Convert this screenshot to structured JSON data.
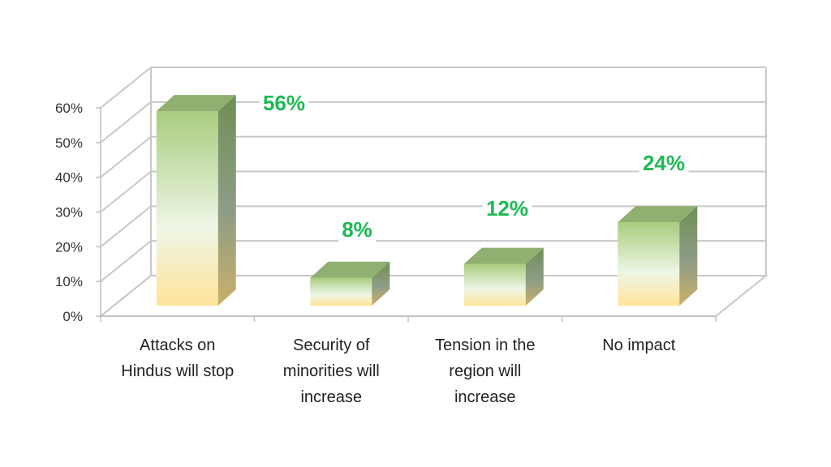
{
  "chart_data": {
    "type": "bar",
    "categories": [
      [
        "Attacks on",
        "Hindus will stop"
      ],
      [
        "Security of",
        "minorities will",
        "increase"
      ],
      [
        "Tension in the",
        "region will",
        "increase"
      ],
      [
        "No impact"
      ]
    ],
    "values": [
      56,
      8,
      12,
      24
    ],
    "data_labels": [
      "56%",
      "8%",
      "12%",
      "24%"
    ],
    "ylim": [
      0,
      60
    ],
    "yticks": [
      0,
      10,
      20,
      30,
      40,
      50,
      60
    ],
    "ytick_labels": [
      "0%",
      "10%",
      "20%",
      "30%",
      "40%",
      "50%",
      "60%"
    ],
    "grid": true,
    "style": "3d-column",
    "colors": {
      "bar_top": "#a9cc7e",
      "bar_mid": "#eef6e6",
      "bar_bottom": "#ffe49a",
      "bar_side": "#7e9a63",
      "bar_cap": "#8fb070",
      "label_color": "#1db954",
      "grid_color": "#c8c8c8"
    }
  }
}
